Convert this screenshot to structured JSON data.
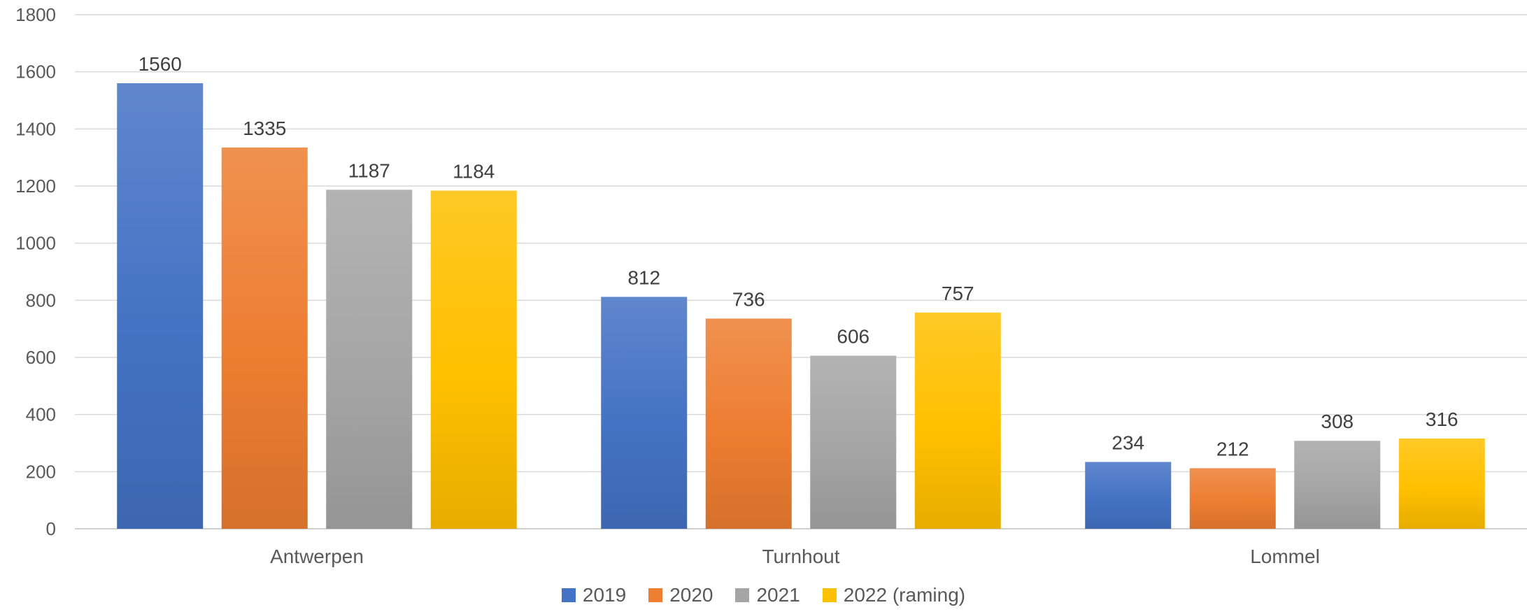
{
  "chart_data": {
    "type": "bar",
    "categories": [
      "Antwerpen",
      "Turnhout",
      "Lommel"
    ],
    "series": [
      {
        "name": "2019",
        "values": [
          1560,
          812,
          234
        ],
        "color": "#4472C4"
      },
      {
        "name": "2020",
        "values": [
          1335,
          736,
          212
        ],
        "color": "#ED7D31"
      },
      {
        "name": "2021",
        "values": [
          1187,
          606,
          308
        ],
        "color": "#A5A5A5"
      },
      {
        "name": "2022 (raming)",
        "values": [
          1184,
          757,
          316
        ],
        "color": "#FFC000"
      }
    ],
    "yticks": [
      "0",
      "200",
      "400",
      "600",
      "800",
      "1000",
      "1200",
      "1400",
      "1600",
      "1800"
    ],
    "ylim": [
      0,
      1800
    ],
    "grid": true,
    "legend_position": "bottom"
  }
}
